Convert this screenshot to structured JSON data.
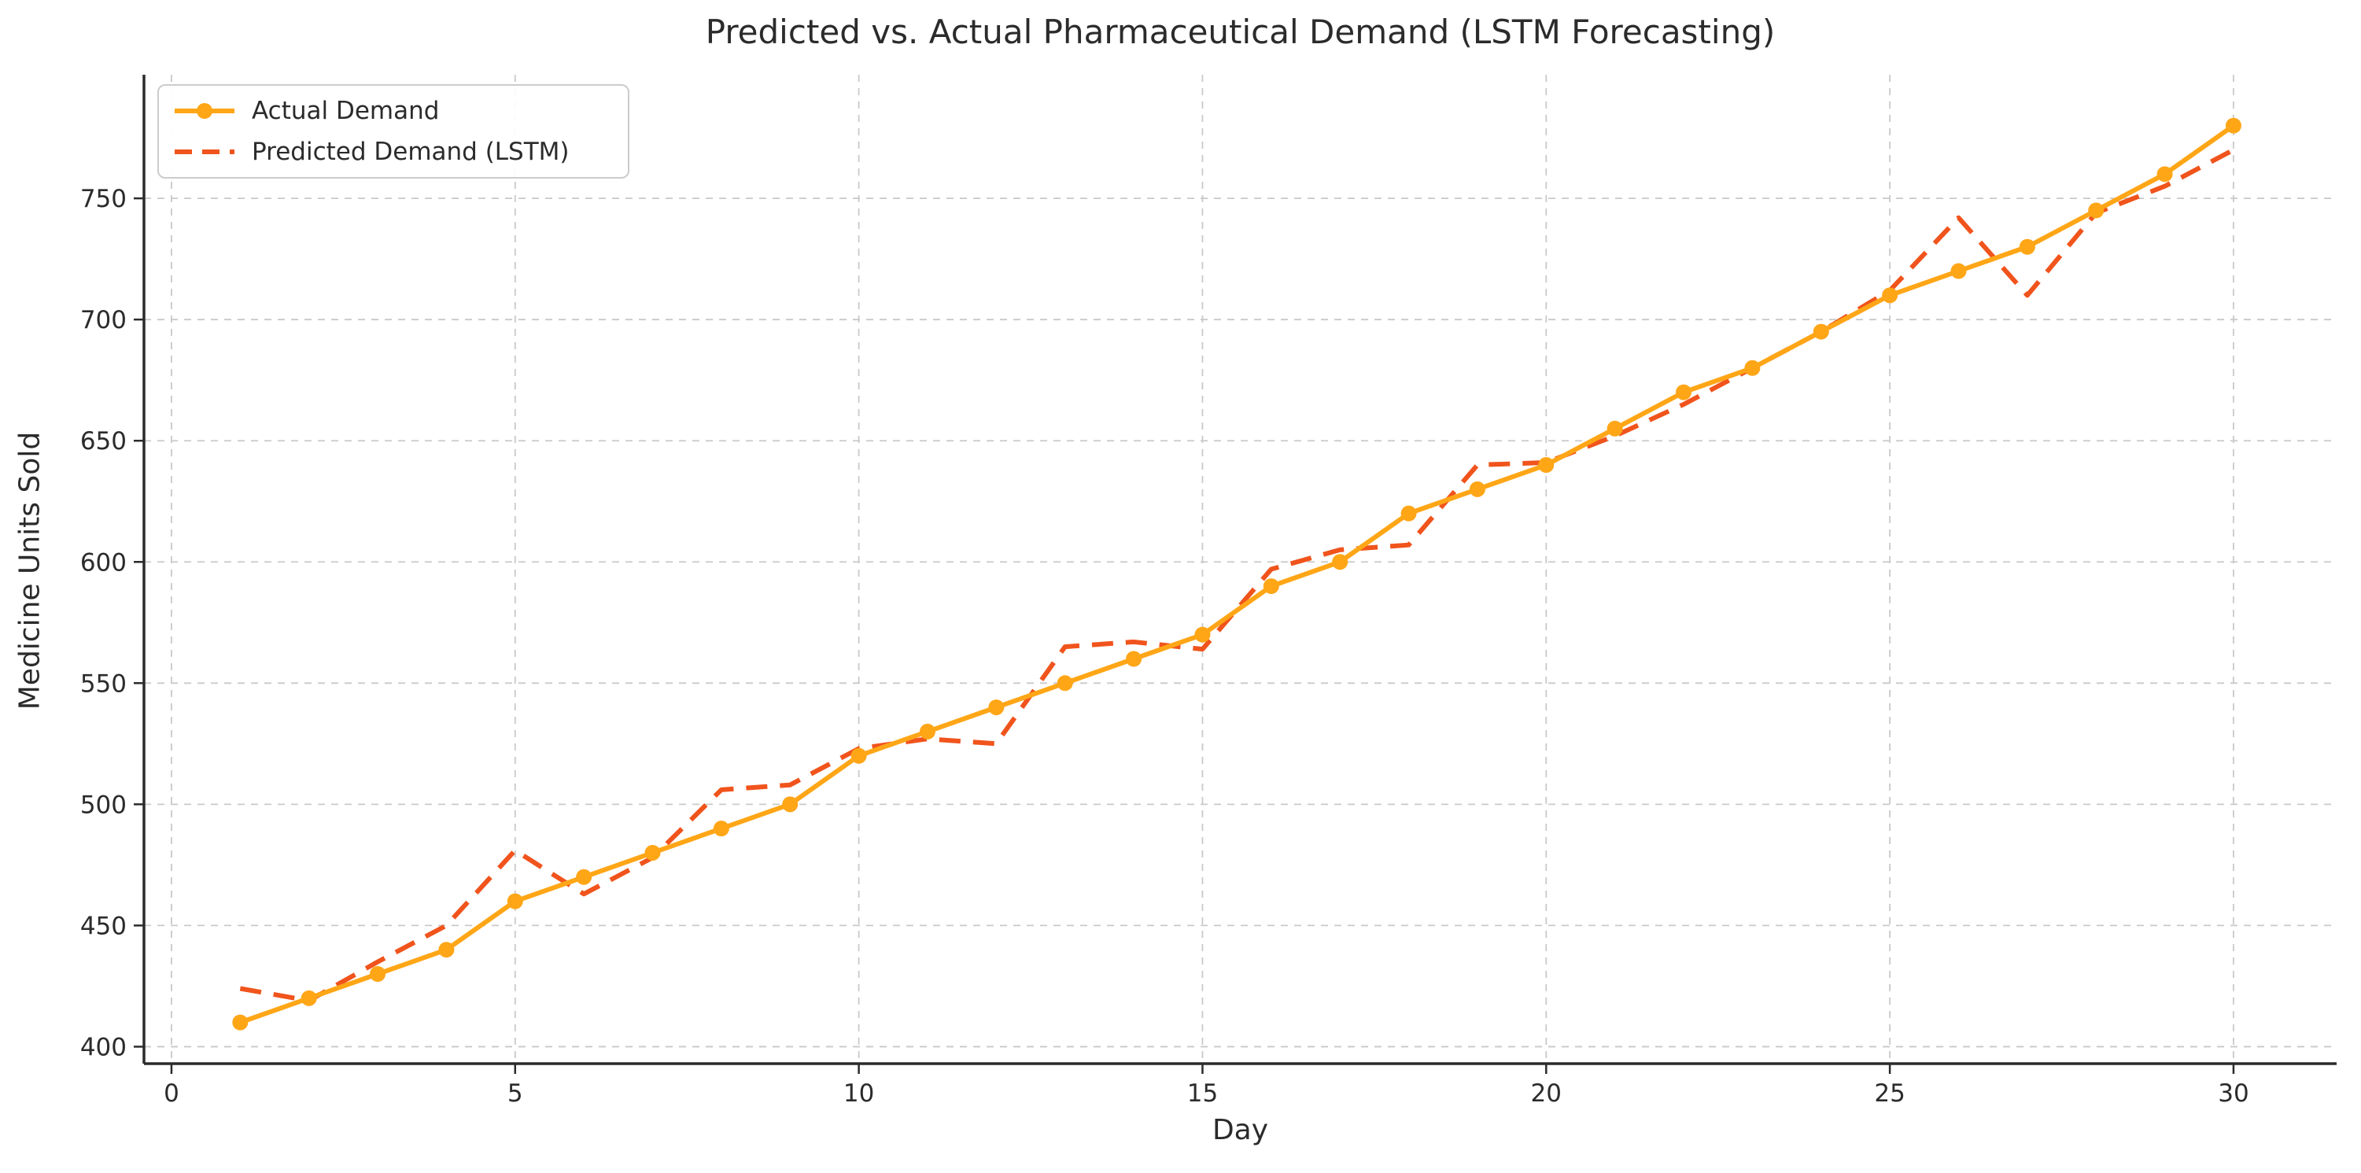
{
  "title": "Predicted vs. Actual Pharmaceutical Demand (LSTM Forecasting)",
  "colors": {
    "actual": "#FFA617",
    "predicted": "#F0541C",
    "grid": "#c9c9c9",
    "axis": "#2b2b2b",
    "text": "#2b2b2b",
    "legend_border": "#cccccc"
  },
  "legend": {
    "items": [
      {
        "label": "Actual Demand",
        "series": "actual",
        "style": "solid-marker"
      },
      {
        "label": "Predicted Demand (LSTM)",
        "series": "predicted",
        "style": "dashed"
      }
    ],
    "position": "upper left"
  },
  "chart_data": {
    "type": "line",
    "title": "Predicted vs. Actual Pharmaceutical Demand (LSTM Forecasting)",
    "xlabel": "Day",
    "ylabel": "Medicine Units Sold",
    "grid": true,
    "legend_position": "upper left",
    "x": [
      1,
      2,
      3,
      4,
      5,
      6,
      7,
      8,
      9,
      10,
      11,
      12,
      13,
      14,
      15,
      16,
      17,
      18,
      19,
      20,
      21,
      22,
      23,
      24,
      25,
      26,
      27,
      28,
      29,
      30
    ],
    "series": [
      {
        "name": "Actual Demand",
        "color": "#FFA617",
        "line_style": "solid",
        "marker": "circle",
        "values": [
          410,
          420,
          430,
          440,
          460,
          470,
          480,
          490,
          500,
          520,
          530,
          540,
          550,
          560,
          570,
          590,
          600,
          620,
          630,
          640,
          655,
          670,
          680,
          695,
          710,
          720,
          730,
          745,
          760,
          780
        ]
      },
      {
        "name": "Predicted Demand (LSTM)",
        "color": "#F0541C",
        "line_style": "dashed",
        "marker": "none",
        "values": [
          424,
          419,
          435,
          450,
          481,
          463,
          478,
          506,
          508,
          523,
          527,
          525,
          565,
          567,
          564,
          597,
          605,
          607,
          640,
          641,
          652,
          665,
          680,
          695,
          712,
          742,
          710,
          744,
          755,
          770
        ]
      }
    ],
    "xticks": [
      0,
      5,
      10,
      15,
      20,
      25,
      30
    ],
    "yticks": [
      400,
      450,
      500,
      550,
      600,
      650,
      700,
      750
    ],
    "xlim": [
      -0.4,
      31.5
    ],
    "ylim": [
      393,
      801
    ]
  }
}
